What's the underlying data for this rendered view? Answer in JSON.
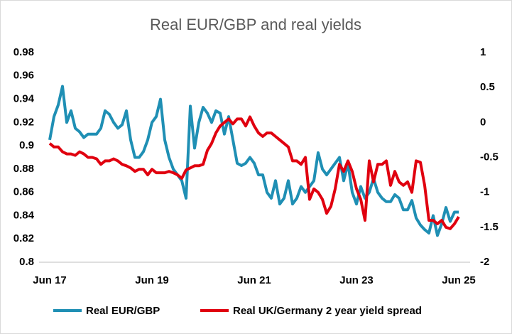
{
  "chart_data": {
    "type": "line",
    "title": "Real EUR/GBP and real yields",
    "categories": [
      "Jun 17",
      null,
      null,
      null,
      null,
      null,
      null,
      null,
      null,
      null,
      null,
      null,
      null,
      null,
      null,
      null,
      null,
      null,
      null,
      null,
      null,
      null,
      null,
      null,
      "Jun 19",
      null,
      null,
      null,
      null,
      null,
      null,
      null,
      null,
      null,
      null,
      null,
      null,
      null,
      null,
      null,
      null,
      null,
      null,
      null,
      null,
      null,
      null,
      null,
      "Jun 21",
      null,
      null,
      null,
      null,
      null,
      null,
      null,
      null,
      null,
      null,
      null,
      null,
      null,
      null,
      null,
      null,
      null,
      null,
      null,
      null,
      null,
      null,
      null,
      "Jun 23",
      null,
      null,
      null,
      null,
      null,
      null,
      null,
      null,
      null,
      null,
      null,
      null,
      null,
      null,
      null,
      null,
      null,
      null,
      null,
      null,
      null,
      null,
      null,
      "Jun 25"
    ],
    "series": [
      {
        "name": "Real EUR/GBP",
        "color": "#1f8fb4",
        "values": [
          0.905,
          0.925,
          0.935,
          0.951,
          0.92,
          0.93,
          0.915,
          0.912,
          0.907,
          0.91,
          0.91,
          0.91,
          0.915,
          0.93,
          0.927,
          0.92,
          0.915,
          0.918,
          0.93,
          0.905,
          0.89,
          0.89,
          0.895,
          0.905,
          0.92,
          0.925,
          0.94,
          0.905,
          0.89,
          0.88,
          0.875,
          0.87,
          0.855,
          0.934,
          0.898,
          0.92,
          0.933,
          0.928,
          0.92,
          0.93,
          0.928,
          0.91,
          0.925,
          0.905,
          0.885,
          0.883,
          0.885,
          0.89,
          0.885,
          0.875,
          0.875,
          0.86,
          0.855,
          0.87,
          0.85,
          0.855,
          0.87,
          0.85,
          0.855,
          0.865,
          0.86,
          0.865,
          0.87,
          0.894,
          0.88,
          0.875,
          0.88,
          0.885,
          0.89,
          0.87,
          0.885,
          0.86,
          0.85,
          0.865,
          0.855,
          0.86,
          0.872,
          0.86,
          0.855,
          0.852,
          0.852,
          0.858,
          0.855,
          0.845,
          0.845,
          0.853,
          0.838,
          0.832,
          0.828,
          0.825,
          0.84,
          0.823,
          0.833,
          0.847,
          0.835,
          0.843,
          0.843
        ]
      },
      {
        "name": "Real UK/Germany 2 year yield spread",
        "color": "#e0000f",
        "axis": "y2",
        "values": [
          -0.3,
          -0.35,
          -0.35,
          -0.42,
          -0.45,
          -0.45,
          -0.47,
          -0.42,
          -0.45,
          -0.5,
          -0.5,
          -0.52,
          -0.6,
          -0.55,
          -0.55,
          -0.52,
          -0.55,
          -0.6,
          -0.62,
          -0.65,
          -0.7,
          -0.67,
          -0.67,
          -0.75,
          -0.67,
          -0.72,
          -0.72,
          -0.72,
          -0.7,
          -0.72,
          -0.75,
          -0.8,
          -0.68,
          -0.65,
          -0.62,
          -0.62,
          -0.6,
          -0.4,
          -0.3,
          -0.15,
          -0.05,
          0.0,
          0.05,
          -0.02,
          0.05,
          0.05,
          -0.05,
          0.08,
          -0.05,
          -0.15,
          -0.2,
          -0.15,
          -0.15,
          -0.2,
          -0.25,
          -0.3,
          -0.35,
          -0.55,
          -0.55,
          -0.6,
          -0.5,
          -1.1,
          -0.95,
          -1.0,
          -1.1,
          -1.3,
          -1.2,
          -0.95,
          -0.6,
          -0.7,
          -0.55,
          -0.7,
          -0.95,
          -1.1,
          -1.4,
          -0.55,
          -0.85,
          -0.6,
          -0.6,
          -0.55,
          -0.9,
          -0.7,
          -0.85,
          -0.9,
          -0.85,
          -1.0,
          -0.55,
          -0.57,
          -0.9,
          -1.4,
          -1.4,
          -1.45,
          -1.4,
          -1.5,
          -1.52,
          -1.45,
          -1.35
        ]
      }
    ],
    "ylim": [
      0.8,
      0.98
    ],
    "yticks": [
      0.8,
      0.82,
      0.84,
      0.86,
      0.88,
      0.9,
      0.92,
      0.94,
      0.96,
      0.98
    ],
    "y2lim": [
      -2,
      1
    ],
    "y2ticks": [
      -2,
      -1.5,
      -1,
      -0.5,
      0,
      0.5,
      1
    ],
    "legend": "bottom"
  }
}
